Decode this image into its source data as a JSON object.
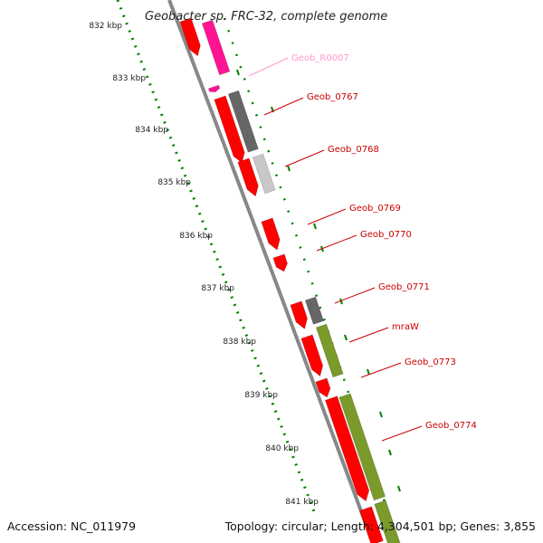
{
  "title": "Geobacter sp. FRC-32, complete genome",
  "footer": {
    "accession": "Accession: NC_011979",
    "topology": "Topology: circular; Length: 4,304,501 bp; Genes: 3,855"
  },
  "ruler": {
    "ticks": [
      {
        "label": "832 kbp",
        "kbp": 832
      },
      {
        "label": "833 kbp",
        "kbp": 833
      },
      {
        "label": "834 kbp",
        "kbp": 834
      },
      {
        "label": "835 kbp",
        "kbp": 835
      },
      {
        "label": "836 kbp",
        "kbp": 836
      },
      {
        "label": "837 kbp",
        "kbp": 837
      },
      {
        "label": "838 kbp",
        "kbp": 838
      },
      {
        "label": "839 kbp",
        "kbp": 839
      },
      {
        "label": "840 kbp",
        "kbp": 840
      },
      {
        "label": "841 kbp",
        "kbp": 841
      }
    ]
  },
  "colors": {
    "cds": "#ff0000",
    "rna": "#ff1493",
    "hit_dark": "#666666",
    "hit_light": "#c8c8c8",
    "hit_olive": "#7a9a2a",
    "backbone": "#888888",
    "ruler": "#008000",
    "label_red": "#cc0000",
    "label_pink": "#ff99cc"
  },
  "features": [
    {
      "name": "Geob_R0007",
      "type": "rna"
    },
    {
      "name": "Geob_0767",
      "type": "cds"
    },
    {
      "name": "Geob_0768",
      "type": "cds"
    },
    {
      "name": "Geob_0769",
      "type": "cds"
    },
    {
      "name": "Geob_0770",
      "type": "cds"
    },
    {
      "name": "Geob_0771",
      "type": "cds"
    },
    {
      "name": "mraW",
      "type": "cds"
    },
    {
      "name": "Geob_0773",
      "type": "cds"
    },
    {
      "name": "Geob_0774",
      "type": "cds"
    }
  ]
}
